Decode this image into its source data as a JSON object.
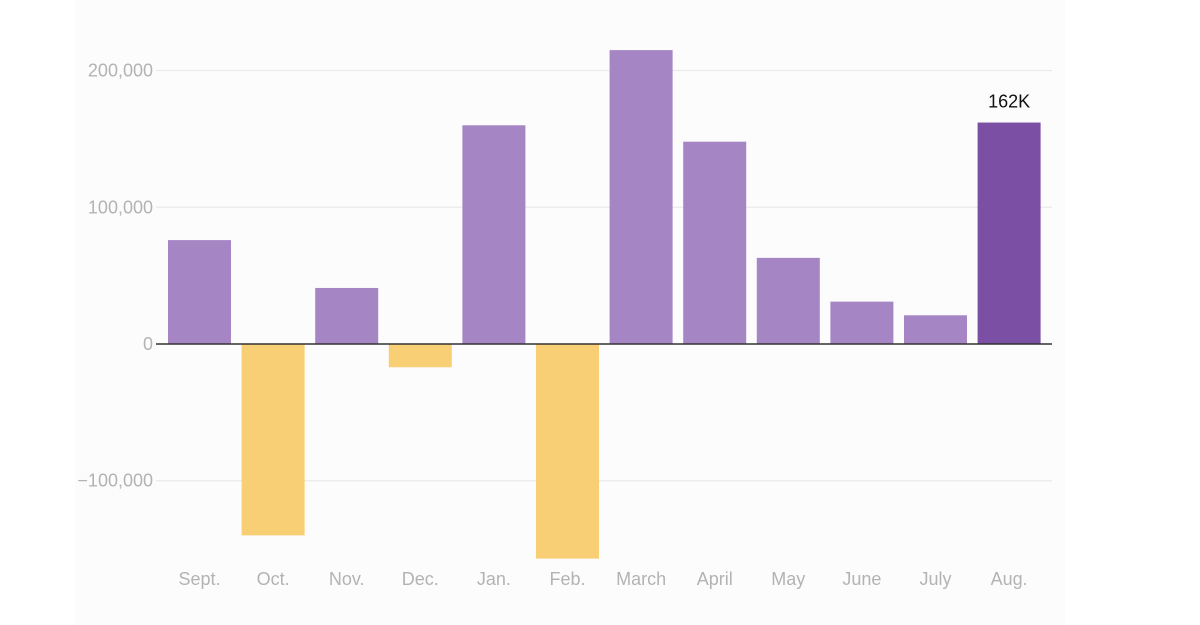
{
  "chart_data": {
    "type": "bar",
    "title": "",
    "xlabel": "",
    "ylabel": "",
    "categories": [
      "Sept.",
      "Oct.",
      "Nov.",
      "Dec.",
      "Jan.",
      "Feb.",
      "March",
      "April",
      "May",
      "June",
      "July",
      "Aug."
    ],
    "values": [
      76000,
      -140000,
      41000,
      -17000,
      160000,
      -157000,
      215000,
      148000,
      63000,
      31000,
      21000,
      162000
    ],
    "ylim": [
      -158000,
      225000
    ],
    "yticks": [
      200000,
      100000,
      0,
      -100000
    ],
    "ytick_labels": [
      "200,000",
      "100,000",
      "0",
      "−100,000"
    ],
    "grid": true,
    "highlight_index": 11,
    "annotations": [
      {
        "index": 11,
        "text": "162K"
      }
    ],
    "colors": {
      "positive": "#a685c5",
      "negative": "#f8cf75",
      "highlight": "#7b4fa4",
      "gridline": "#e6e6e6",
      "zero_line": "#333333",
      "axis_text": "#b3b3b3",
      "annotation_text": "#111111"
    }
  }
}
